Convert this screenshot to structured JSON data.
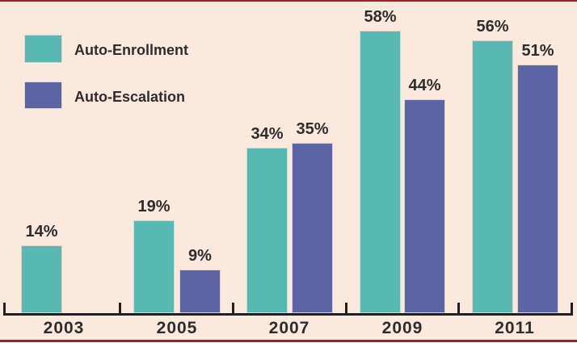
{
  "frame": {
    "background_color": "#fbe9de",
    "rule_color": "#a02025",
    "axis_color": "#231f20",
    "text_color": "#2d2d2d"
  },
  "legend": {
    "items": [
      {
        "label": "Auto-Enrollment",
        "color": "#57b9b2"
      },
      {
        "label": "Auto-Escalation",
        "color": "#5d64a6"
      }
    ]
  },
  "chart_data": {
    "type": "bar",
    "categories": [
      "2003",
      "2005",
      "2007",
      "2009",
      "2011"
    ],
    "series": [
      {
        "name": "Auto-Enrollment",
        "color": "#57b9b2",
        "values": [
          14,
          19,
          34,
          58,
          56
        ]
      },
      {
        "name": "Auto-Escalation",
        "color": "#5d64a6",
        "values": [
          null,
          9,
          35,
          44,
          51
        ]
      }
    ],
    "value_labels": [
      [
        "14%",
        null
      ],
      [
        "19%",
        "9%"
      ],
      [
        "34%",
        "35%"
      ],
      [
        "58%",
        "44%"
      ],
      [
        "56%",
        "51%"
      ]
    ],
    "ylim": [
      0,
      64
    ],
    "grid": false,
    "legend_position": "top-left",
    "value_label_suffix": "%"
  }
}
